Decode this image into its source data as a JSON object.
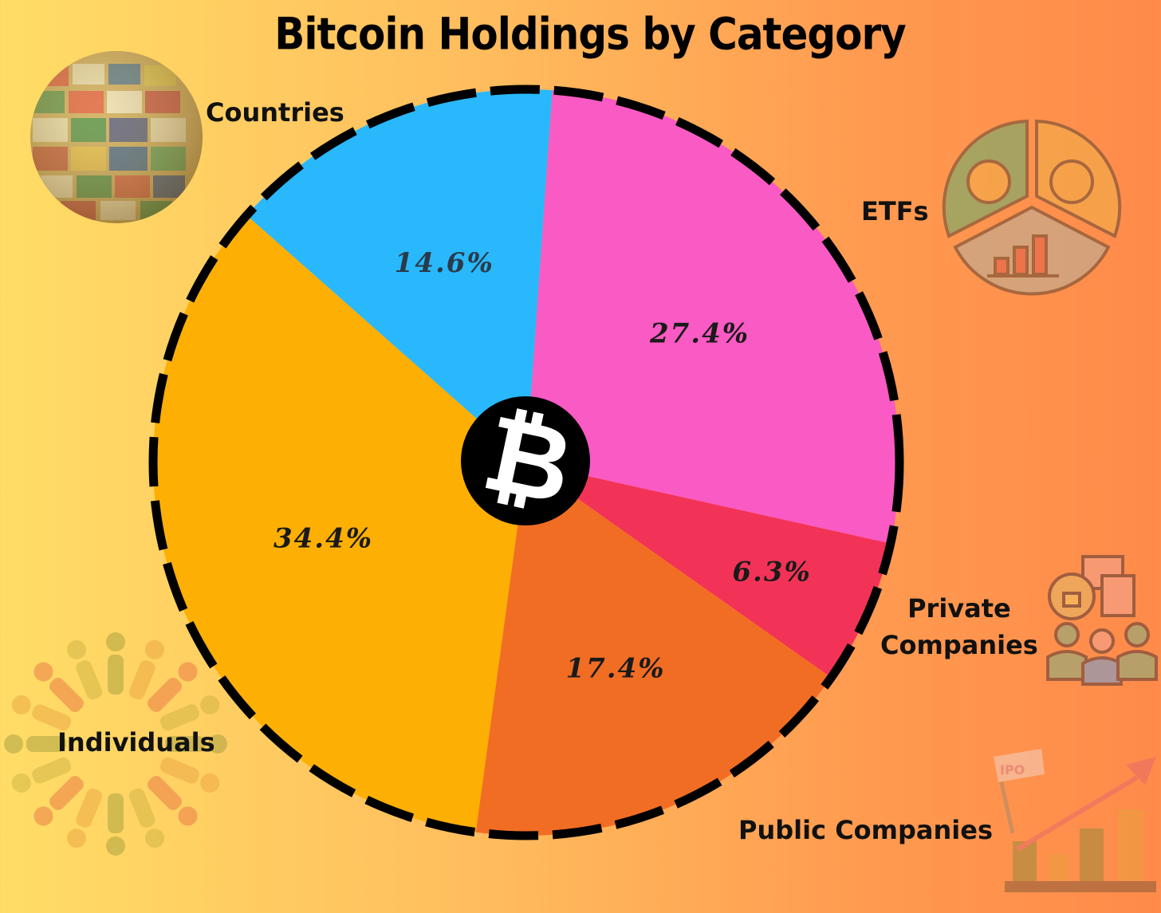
{
  "chart_data": {
    "type": "pie",
    "title": "Bitcoin Holdings by Category",
    "slices": [
      {
        "label": "ETFs",
        "value": 27.4,
        "value_label": "27.4%",
        "color": "#f95ac3"
      },
      {
        "label": "Private Companies",
        "value": 6.3,
        "value_label": "6.3%",
        "color": "#f23357"
      },
      {
        "label": "Public Companies",
        "value": 17.4,
        "value_label": "17.4%",
        "color": "#f26d24"
      },
      {
        "label": "Individuals",
        "value": 34.4,
        "value_label": "34.4%",
        "color": "#fdaf03"
      },
      {
        "label": "Countries",
        "value": 14.6,
        "value_label": "14.6%",
        "color": "#29b8fb"
      }
    ],
    "legend": "none",
    "center_icon": "bitcoin-icon"
  },
  "category_labels": {
    "countries": "Countries",
    "etfs": "ETFs",
    "private_line1": "Private",
    "private_line2": "Companies",
    "public": "Public Companies",
    "individuals": "Individuals"
  },
  "decorations": {
    "countries": "globe-flags-icon",
    "etfs": "fund-pie-icon",
    "private": "private-company-icon",
    "public": "ipo-growth-icon",
    "individuals": "people-circle-icon",
    "ipo_flag_text": "IPO"
  }
}
